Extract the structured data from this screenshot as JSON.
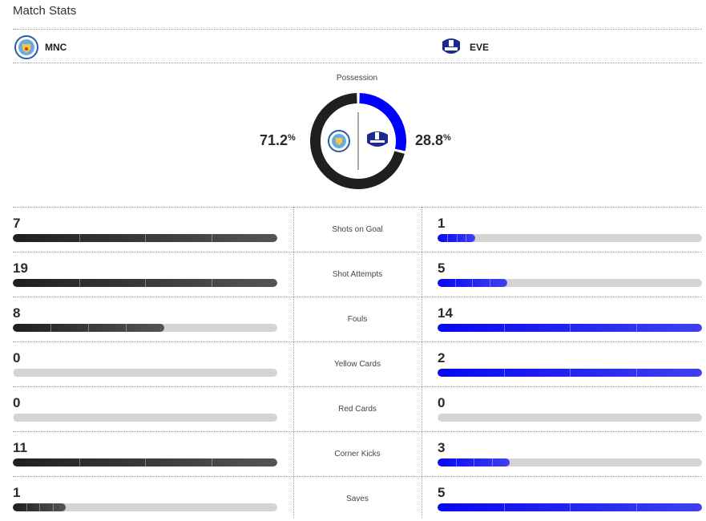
{
  "title": "Match Stats",
  "home": {
    "abbr": "MNC",
    "possession": "71.2",
    "color": "#1e1f21"
  },
  "away": {
    "abbr": "EVE",
    "possession": "28.8",
    "color": "#0000ff"
  },
  "possession_label": "Possession",
  "pct_symbol": "%",
  "possession_fraction": {
    "home": 0.712,
    "away": 0.288
  },
  "stats": [
    {
      "label": "Shots on Goal",
      "home": 7,
      "away": 1
    },
    {
      "label": "Shot Attempts",
      "home": 19,
      "away": 5
    },
    {
      "label": "Fouls",
      "home": 8,
      "away": 14
    },
    {
      "label": "Yellow Cards",
      "home": 0,
      "away": 2
    },
    {
      "label": "Red Cards",
      "home": 0,
      "away": 0
    },
    {
      "label": "Corner Kicks",
      "home": 11,
      "away": 3
    },
    {
      "label": "Saves",
      "home": 1,
      "away": 5
    }
  ]
}
